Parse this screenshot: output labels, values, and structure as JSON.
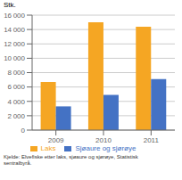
{
  "chart_data": {
    "type": "bar",
    "categories": [
      "2009",
      "2010",
      "2011"
    ],
    "series": [
      {
        "name": "Laks",
        "color": "#F5A623",
        "values": [
          6700,
          15000,
          14400
        ]
      },
      {
        "name": "Sjøaure og sjørøye",
        "color": "#4472C4",
        "values": [
          3300,
          4900,
          7100
        ]
      }
    ],
    "y_label": "Stk.",
    "ylim": [
      0,
      16000
    ],
    "yticks": [
      0,
      {
        "value": 2000,
        "label": "2 000"
      },
      {
        "value": 4000,
        "label": "4 000"
      },
      {
        "value": 6000,
        "label": "6 000"
      },
      {
        "value": 8000,
        "label": "8 000"
      },
      {
        "value": 10000,
        "label": "10 000"
      },
      {
        "value": 12000,
        "label": "12 000"
      },
      {
        "value": 14000,
        "label": "14 000"
      },
      {
        "value": 16000,
        "label": "16 000"
      }
    ],
    "grid": true,
    "legend": "bottom",
    "annotations": [
      "Kjelde: Elvefiske etter laks, sjøaure og sjørøye, Statistisk\nsentralbyrå."
    ]
  }
}
